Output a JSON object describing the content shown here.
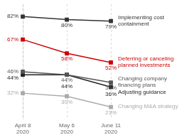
{
  "chart_data": {
    "type": "line",
    "categories": [
      "April 8\n2020",
      "May 6\n2020",
      "June 11\n2020"
    ],
    "series": [
      {
        "name": "Implementing cost\ncontainment",
        "color": "#333333",
        "marker": "square",
        "values": [
          82,
          80,
          79
        ],
        "value_labels": [
          "82%",
          "80%",
          "79%"
        ]
      },
      {
        "name": "Deferring or canceling\nplanned investments",
        "color": "#cc0000",
        "marker": "square",
        "values": [
          67,
          58,
          52
        ],
        "value_labels": [
          "67%",
          "58%",
          "52%"
        ]
      },
      {
        "name": "Changing company\nfinancing plans",
        "color": "#555555",
        "marker": "square",
        "values": [
          46,
          44,
          39
        ],
        "value_labels": [
          "46%",
          "44%",
          "39%"
        ]
      },
      {
        "name": "Adjusting guidance",
        "color": "#222222",
        "marker": "square",
        "values": [
          44,
          44,
          36
        ],
        "value_labels": [
          "44%",
          "44%",
          "36%"
        ]
      },
      {
        "name": "Changing M&A strategy",
        "color": "#aaaaaa",
        "marker": "square",
        "values": [
          32,
          30,
          23
        ],
        "value_labels": [
          "32%",
          "30%",
          "23%"
        ]
      }
    ],
    "ylim": [
      15,
      90
    ],
    "grid": true,
    "data_labels": true,
    "tick_labels": "x"
  }
}
